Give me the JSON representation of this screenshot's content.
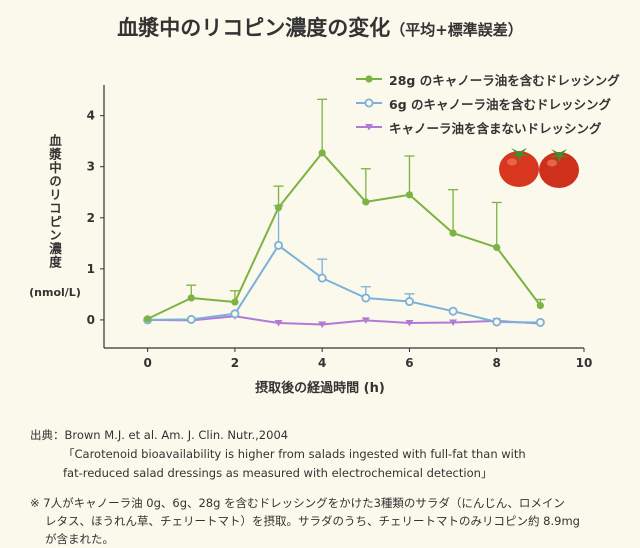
{
  "header": {
    "title": "血漿中のリコピン濃度の変化",
    "subtitle": "（平均+標準誤差）"
  },
  "chart_data": {
    "type": "line",
    "ylabel": "血漿中のリコピン濃度",
    "yunit": "(nmol/L)",
    "xlabel": "摂取後の経過時間 (h)",
    "xlim": [
      -1,
      10
    ],
    "ylim": [
      -0.55,
      4.6
    ],
    "xticks": [
      0,
      2,
      4,
      6,
      8,
      10
    ],
    "yticks": [
      0,
      1,
      2,
      3,
      4
    ],
    "grid": false,
    "legend_position": "top-right",
    "series": [
      {
        "name": "28g のキャノーラ油を含むドレッシング",
        "color": "#7cb342",
        "marker": "circle",
        "x": [
          0,
          1,
          2,
          3,
          4,
          5,
          6,
          7,
          8,
          9
        ],
        "y": [
          0.02,
          0.43,
          0.35,
          2.2,
          3.27,
          2.31,
          2.45,
          1.7,
          1.42,
          0.28
        ],
        "err": [
          0.0,
          0.25,
          0.22,
          0.42,
          1.05,
          0.65,
          0.76,
          0.85,
          0.88,
          0.12
        ]
      },
      {
        "name": "6g のキャノーラ油を含むドレッシング",
        "color": "#7bb1db",
        "marker": "circle-open",
        "x": [
          0,
          1,
          2,
          3,
          4,
          5,
          6,
          7,
          8,
          9
        ],
        "y": [
          0.0,
          0.01,
          0.12,
          1.46,
          0.82,
          0.43,
          0.36,
          0.17,
          -0.04,
          -0.05
        ],
        "err": [
          0.0,
          0.0,
          0.0,
          0.78,
          0.37,
          0.22,
          0.15,
          0.0,
          0.0,
          0.0
        ]
      },
      {
        "name": "キャノーラ油を含まないドレッシング",
        "color": "#b07ad6",
        "marker": "triangle-down",
        "x": [
          0,
          1,
          2,
          3,
          4,
          5,
          6,
          7,
          8,
          9
        ],
        "y": [
          0.0,
          -0.01,
          0.07,
          -0.06,
          -0.09,
          -0.01,
          -0.06,
          -0.05,
          -0.02,
          -0.07
        ],
        "err": [
          0,
          0,
          0,
          0,
          0,
          0,
          0,
          0,
          0,
          0
        ]
      }
    ]
  },
  "source": {
    "label": "出典：",
    "citation": "Brown M.J. et al. Am. J. Clin. Nutr.,2004",
    "title_line1": "「Carotenoid bioavailability is higher from salads ingested with full-fat than with",
    "title_line2": "fat-reduced salad dressings as measured with electrochemical detection」"
  },
  "note": {
    "line1": "※ 7人がキャノーラ油 0g、6g、28g を含むドレッシングをかけた3種類のサラダ（にんじん、ロメイン",
    "line2": "レタス、ほうれん草、チェリートマト）を摂取。サラダのうち、チェリートマトのみリコピン約 8.9mg",
    "line3": "が含まれた。"
  },
  "decoration": {
    "image": "tomato-pair"
  }
}
